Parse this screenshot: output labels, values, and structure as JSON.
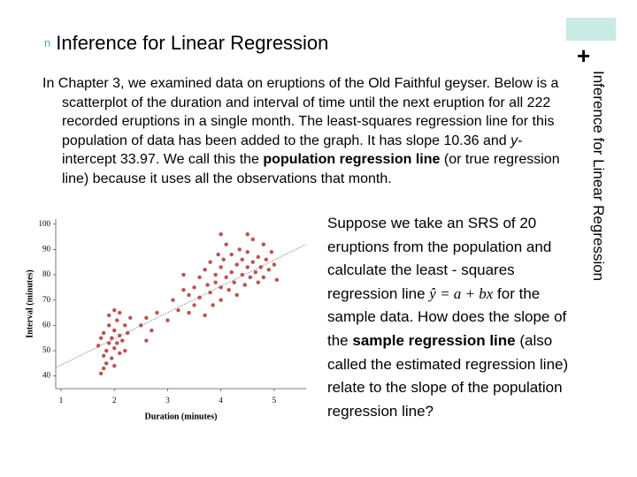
{
  "header": {
    "bullet": "n",
    "title": "Inference for Linear Regression"
  },
  "side_title": "Inference for Linear Regression",
  "corner_mark": "+",
  "intro": {
    "part1": "In Chapter 3, we examined data on eruptions of the Old Faithful geyser. Below is a scatterplot of the duration and interval of time until the next eruption for all 222 recorded eruptions in a single month. The least-squares regression line for this population of data has been added to the graph. It has slope ",
    "slope": 10.36,
    "part2": " and ",
    "y_symbol": "y",
    "part3": "-intercept ",
    "intercept": 33.97,
    "part4": ". We call this the ",
    "bold": "population regression line",
    "part5": " (or true regression line) because it uses all the observations that month."
  },
  "question": {
    "part1": "Suppose we take an SRS of 20 eruptions from the population and calculate the least - squares regression line ",
    "formula": "ŷ = a + bx",
    "part2": " for the sample data. How does the slope of the ",
    "bold": "sample regression line",
    "part3": " (also called the estimated regression line) relate to the slope of the population regression line?"
  },
  "chart_data": {
    "type": "scatter",
    "xlabel": "Duration (minutes)",
    "ylabel": "Interval (minutes)",
    "color": "#c0504d",
    "line_color": "#888888",
    "xlim": [
      0.9,
      5.6
    ],
    "ylim": [
      35,
      102
    ],
    "xticks": [
      1,
      2,
      3,
      4,
      5
    ],
    "yticks": [
      40,
      50,
      60,
      70,
      80,
      90,
      100
    ],
    "x": [
      1.7,
      1.75,
      1.8,
      1.8,
      1.85,
      1.85,
      1.9,
      1.9,
      1.95,
      1.95,
      2.0,
      2.0,
      2.0,
      2.05,
      2.05,
      2.1,
      2.1,
      2.15,
      2.2,
      2.2,
      2.25,
      2.3,
      1.8,
      1.75,
      2.0,
      2.1,
      1.9,
      2.5,
      2.6,
      2.6,
      2.7,
      2.8,
      3.0,
      3.1,
      3.2,
      3.3,
      3.4,
      3.5,
      3.5,
      3.6,
      3.6,
      3.7,
      3.7,
      3.75,
      3.8,
      3.8,
      3.85,
      3.9,
      3.9,
      3.95,
      4.0,
      4.0,
      4.0,
      4.05,
      4.1,
      4.1,
      4.15,
      4.2,
      4.2,
      4.25,
      4.3,
      4.3,
      4.35,
      4.4,
      4.4,
      4.45,
      4.5,
      4.5,
      4.55,
      4.6,
      4.6,
      4.65,
      4.7,
      4.7,
      4.75,
      4.8,
      4.8,
      4.85,
      4.9,
      4.95,
      5.0,
      5.05,
      3.3,
      3.4,
      4.0,
      4.5
    ],
    "y": [
      52,
      55,
      48,
      57,
      50,
      45,
      53,
      60,
      47,
      55,
      51,
      58,
      44,
      53,
      62,
      49,
      56,
      54,
      50,
      60,
      57,
      63,
      43,
      41,
      66,
      65,
      64,
      60,
      54,
      63,
      58,
      65,
      62,
      70,
      66,
      74,
      72,
      75,
      68,
      79,
      71,
      82,
      64,
      76,
      85,
      73,
      68,
      80,
      77,
      88,
      75,
      83,
      70,
      86,
      79,
      92,
      74,
      81,
      88,
      77,
      84,
      72,
      90,
      80,
      86,
      76,
      83,
      89,
      79,
      85,
      94,
      81,
      77,
      87,
      83,
      92,
      79,
      86,
      82,
      89,
      84,
      78,
      80,
      65,
      96,
      96
    ]
  }
}
